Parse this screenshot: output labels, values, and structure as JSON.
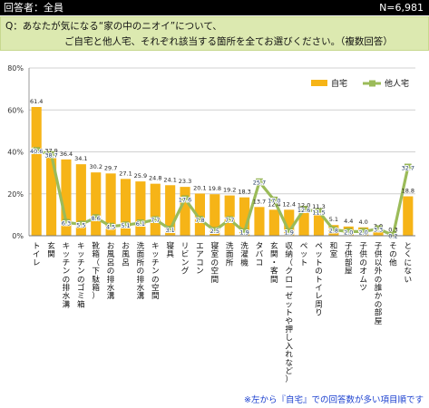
{
  "header": {
    "respondents_label": "回答者：全員",
    "n_label": "N=6,981"
  },
  "question": {
    "line1": "Q：あなたが気になる“家の中のニオイ”について、",
    "line2": "ご自宅と他人宅、それぞれ該当する箇所を全てお選びください。（複数回答）"
  },
  "footnote": "※左から『自宅』での回答数が多い項目順です",
  "colors": {
    "bar": "#f6b417",
    "line": "#9bbb59",
    "grid": "#d0d0d0",
    "question_bg": "#dce9b0",
    "footnote": "#1a3fcf"
  },
  "chart_data": {
    "type": "bar",
    "categories": [
      "トイレ",
      "玄関",
      "キッチンの排水溝",
      "キッチンのゴミ箱",
      "靴箱（下駄箱）",
      "お風呂の排水溝",
      "お風呂",
      "洗面所の排水溝",
      "キッチンの空間",
      "寝具",
      "リビング",
      "エアコン",
      "寝室の空間",
      "洗面所",
      "洗濯機",
      "タバコ",
      "玄関・客間",
      "収納（クローゼットや押し入れなど）",
      "ペット",
      "ペットのトイレ周り",
      "和室",
      "子供部屋",
      "子供のオムツ",
      "子供以外の誰かの部屋",
      "その他",
      "とくにない"
    ],
    "series": [
      {
        "name": "自宅",
        "type": "bar",
        "values": [
          61.4,
          37.9,
          36.4,
          34.1,
          30.2,
          29.7,
          27.1,
          25.9,
          24.8,
          24.1,
          23.3,
          20.1,
          19.8,
          19.2,
          18.3,
          13.7,
          12.4,
          12.4,
          12.0,
          11.3,
          5.1,
          4.4,
          4.0,
          2.0,
          0.3,
          18.8
        ]
      },
      {
        "name": "他人宅",
        "type": "line",
        "values": [
          40.6,
          38.7,
          6.3,
          5.5,
          8.6,
          4.5,
          5.1,
          6.1,
          7.7,
          3.1,
          17.6,
          7.8,
          2.5,
          7.7,
          1.9,
          25.7,
          17.0,
          1.9,
          12.6,
          11.5,
          2.8,
          2.0,
          2.0,
          3.3,
          0.2,
          32.7
        ]
      }
    ],
    "ylim": [
      0,
      80
    ],
    "yticks": [
      "0%",
      "20%",
      "40%",
      "60%",
      "80%"
    ],
    "grid": true,
    "legend_position": "top-right"
  }
}
